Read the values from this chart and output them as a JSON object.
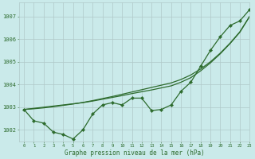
{
  "title": "Graphe pression niveau de la mer (hPa)",
  "background_color": "#caeaea",
  "plot_bg_color": "#caeaea",
  "grid_color": "#b0c8c8",
  "line_color": "#2d6b2d",
  "marker_color": "#2d6b2d",
  "xlim": [
    -0.5,
    23
  ],
  "ylim": [
    1001.5,
    1007.6
  ],
  "yticks": [
    1002,
    1003,
    1004,
    1005,
    1006,
    1007
  ],
  "xticks": [
    0,
    1,
    2,
    3,
    4,
    5,
    6,
    7,
    8,
    9,
    10,
    11,
    12,
    13,
    14,
    15,
    16,
    17,
    18,
    19,
    20,
    21,
    22,
    23
  ],
  "main_series": [
    1002.9,
    1002.4,
    1002.3,
    1001.9,
    1001.8,
    1001.6,
    1002.0,
    1002.7,
    1003.1,
    1003.2,
    1003.1,
    1003.4,
    1003.4,
    1002.85,
    1002.9,
    1003.1,
    1003.7,
    1004.1,
    1004.8,
    1005.5,
    1006.1,
    1006.6,
    1006.8,
    1007.3
  ],
  "trend1": [
    1002.9,
    1002.95,
    1003.0,
    1003.05,
    1003.1,
    1003.15,
    1003.2,
    1003.27,
    1003.35,
    1003.43,
    1003.51,
    1003.6,
    1003.68,
    1003.76,
    1003.85,
    1003.94,
    1004.1,
    1004.3,
    1004.6,
    1004.95,
    1005.35,
    1005.8,
    1006.3,
    1007.0
  ],
  "trend2": [
    1002.9,
    1002.93,
    1002.97,
    1003.02,
    1003.08,
    1003.14,
    1003.21,
    1003.29,
    1003.38,
    1003.47,
    1003.57,
    1003.67,
    1003.77,
    1003.87,
    1003.97,
    1004.07,
    1004.22,
    1004.42,
    1004.68,
    1005.0,
    1005.38,
    1005.82,
    1006.32,
    1007.0
  ]
}
